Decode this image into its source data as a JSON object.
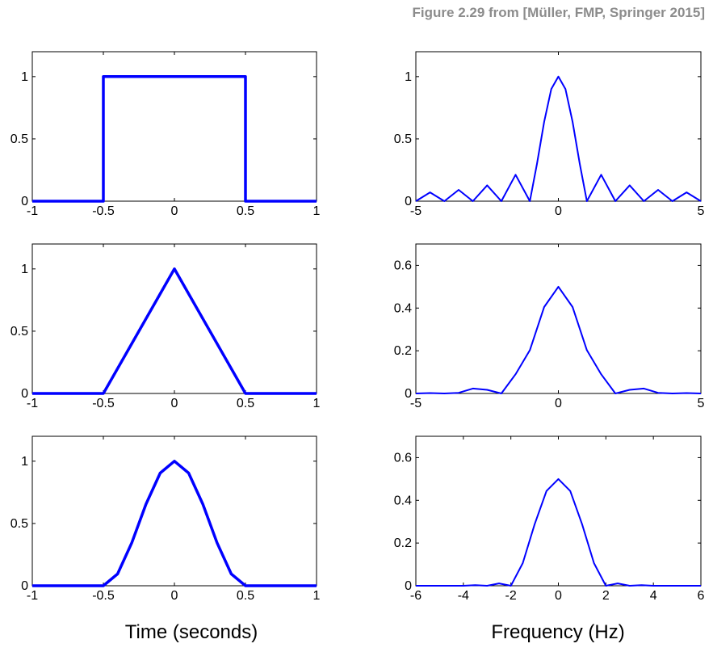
{
  "caption": "Figure 2.29 from [Müller, FMP, Springer 2015]",
  "xlabels": {
    "left": "Time (seconds)",
    "right": "Frequency (Hz)"
  },
  "colors": {
    "line": "#0000ff",
    "axes": "#000000",
    "caption": "#8c8c8c"
  },
  "chart_data": [
    {
      "type": "line",
      "xlim": [
        -1,
        1
      ],
      "ylim": [
        0,
        1.2
      ],
      "xticks": [
        -1,
        -0.5,
        0,
        0.5,
        1
      ],
      "xtick_labels": [
        "-1",
        "-0.5",
        "0",
        "0.5",
        "1"
      ],
      "yticks": [
        0,
        0.5,
        1
      ],
      "ytick_labels": [
        "0",
        "0.5",
        "1"
      ],
      "series": [
        {
          "x": [
            -1,
            -0.5,
            -0.5,
            0.5,
            0.5,
            1
          ],
          "y": [
            0,
            0,
            1,
            1,
            0,
            0
          ],
          "color": "#0000ff"
        }
      ]
    },
    {
      "type": "line",
      "xlim": [
        -5,
        5
      ],
      "ylim": [
        0,
        1.2
      ],
      "xticks": [
        -5,
        0,
        5
      ],
      "xtick_labels": [
        "-5",
        "0",
        "5"
      ],
      "yticks": [
        0,
        0.5,
        1
      ],
      "ytick_labels": [
        "0",
        "0.5",
        "1"
      ],
      "series": [
        {
          "x": [
            -5,
            -4.5,
            -4,
            -3.5,
            -3,
            -2.5,
            -2,
            -1.5,
            -1,
            -0.75,
            -0.5,
            -0.25,
            0,
            0.25,
            0.5,
            0.75,
            1,
            1.5,
            2,
            2.5,
            3,
            3.5,
            4,
            4.5,
            5
          ],
          "y": [
            0,
            0.071,
            0,
            0.091,
            0,
            0.127,
            0,
            0.212,
            0,
            0.3,
            0.637,
            0.9,
            1,
            0.9,
            0.637,
            0.3,
            0,
            0.212,
            0,
            0.127,
            0,
            0.091,
            0,
            0.071,
            0
          ],
          "color": "#0000ff"
        }
      ]
    },
    {
      "type": "line",
      "xlim": [
        -1,
        1
      ],
      "ylim": [
        0,
        1.2
      ],
      "xticks": [
        -1,
        -0.5,
        0,
        0.5,
        1
      ],
      "xtick_labels": [
        "-1",
        "-0.5",
        "0",
        "0.5",
        "1"
      ],
      "yticks": [
        0,
        0.5,
        1
      ],
      "ytick_labels": [
        "0",
        "0.5",
        "1"
      ],
      "series": [
        {
          "x": [
            -1,
            -0.5,
            0,
            0.5,
            1
          ],
          "y": [
            0,
            0,
            1,
            0,
            0
          ],
          "color": "#0000ff"
        }
      ]
    },
    {
      "type": "line",
      "xlim": [
        -5,
        5
      ],
      "ylim": [
        0,
        0.7
      ],
      "xticks": [
        -5,
        0,
        5
      ],
      "xtick_labels": [
        "-5",
        "0",
        "5"
      ],
      "yticks": [
        0,
        0.2,
        0.4,
        0.6
      ],
      "ytick_labels": [
        "0",
        "0.2",
        "0.4",
        "0.6"
      ],
      "series": [
        {
          "x": [
            -5,
            -4.5,
            -4,
            -3.5,
            -3,
            -2.5,
            -2,
            -1.5,
            -1,
            -0.5,
            0,
            0.5,
            1,
            1.5,
            2,
            2.5,
            3,
            3.5,
            4,
            4.5,
            5
          ],
          "y": [
            0,
            0.002,
            0,
            0.003,
            0.023,
            0.017,
            0,
            0.09,
            0.203,
            0.405,
            0.5,
            0.405,
            0.203,
            0.09,
            0,
            0.017,
            0.023,
            0.003,
            0,
            0.002,
            0
          ],
          "color": "#0000ff"
        }
      ]
    },
    {
      "type": "line",
      "xlim": [
        -1,
        1
      ],
      "ylim": [
        0,
        1.2
      ],
      "xticks": [
        -1,
        -0.5,
        0,
        0.5,
        1
      ],
      "xtick_labels": [
        "-1",
        "-0.5",
        "0",
        "0.5",
        "1"
      ],
      "yticks": [
        0,
        0.5,
        1
      ],
      "ytick_labels": [
        "0",
        "0.5",
        "1"
      ],
      "series": [
        {
          "x": [
            -1,
            -0.5,
            -0.4,
            -0.3,
            -0.2,
            -0.1,
            0,
            0.1,
            0.2,
            0.3,
            0.4,
            0.5,
            1
          ],
          "y": [
            0,
            0,
            0.095,
            0.345,
            0.655,
            0.905,
            1,
            0.905,
            0.655,
            0.345,
            0.095,
            0,
            0
          ],
          "color": "#0000ff"
        }
      ]
    },
    {
      "type": "line",
      "xlim": [
        -6,
        6
      ],
      "ylim": [
        0,
        0.7
      ],
      "xticks": [
        -6,
        -4,
        -2,
        0,
        2,
        4,
        6
      ],
      "xtick_labels": [
        "-6",
        "-4",
        "-2",
        "0",
        "2",
        "4",
        "6"
      ],
      "yticks": [
        0,
        0.2,
        0.4,
        0.6
      ],
      "ytick_labels": [
        "0",
        "0.2",
        "0.4",
        "0.6"
      ],
      "series": [
        {
          "x": [
            -6,
            -5,
            -4,
            -3.5,
            -3,
            -2.5,
            -2,
            -1.5,
            -1,
            -0.5,
            0,
            0.5,
            1,
            1.5,
            2,
            2.5,
            3,
            3.5,
            4,
            5,
            6
          ],
          "y": [
            0,
            0,
            0,
            0.003,
            0,
            0.011,
            0,
            0.106,
            0.288,
            0.444,
            0.5,
            0.444,
            0.288,
            0.106,
            0,
            0.011,
            0,
            0.003,
            0,
            0,
            0
          ],
          "color": "#0000ff"
        }
      ]
    }
  ]
}
